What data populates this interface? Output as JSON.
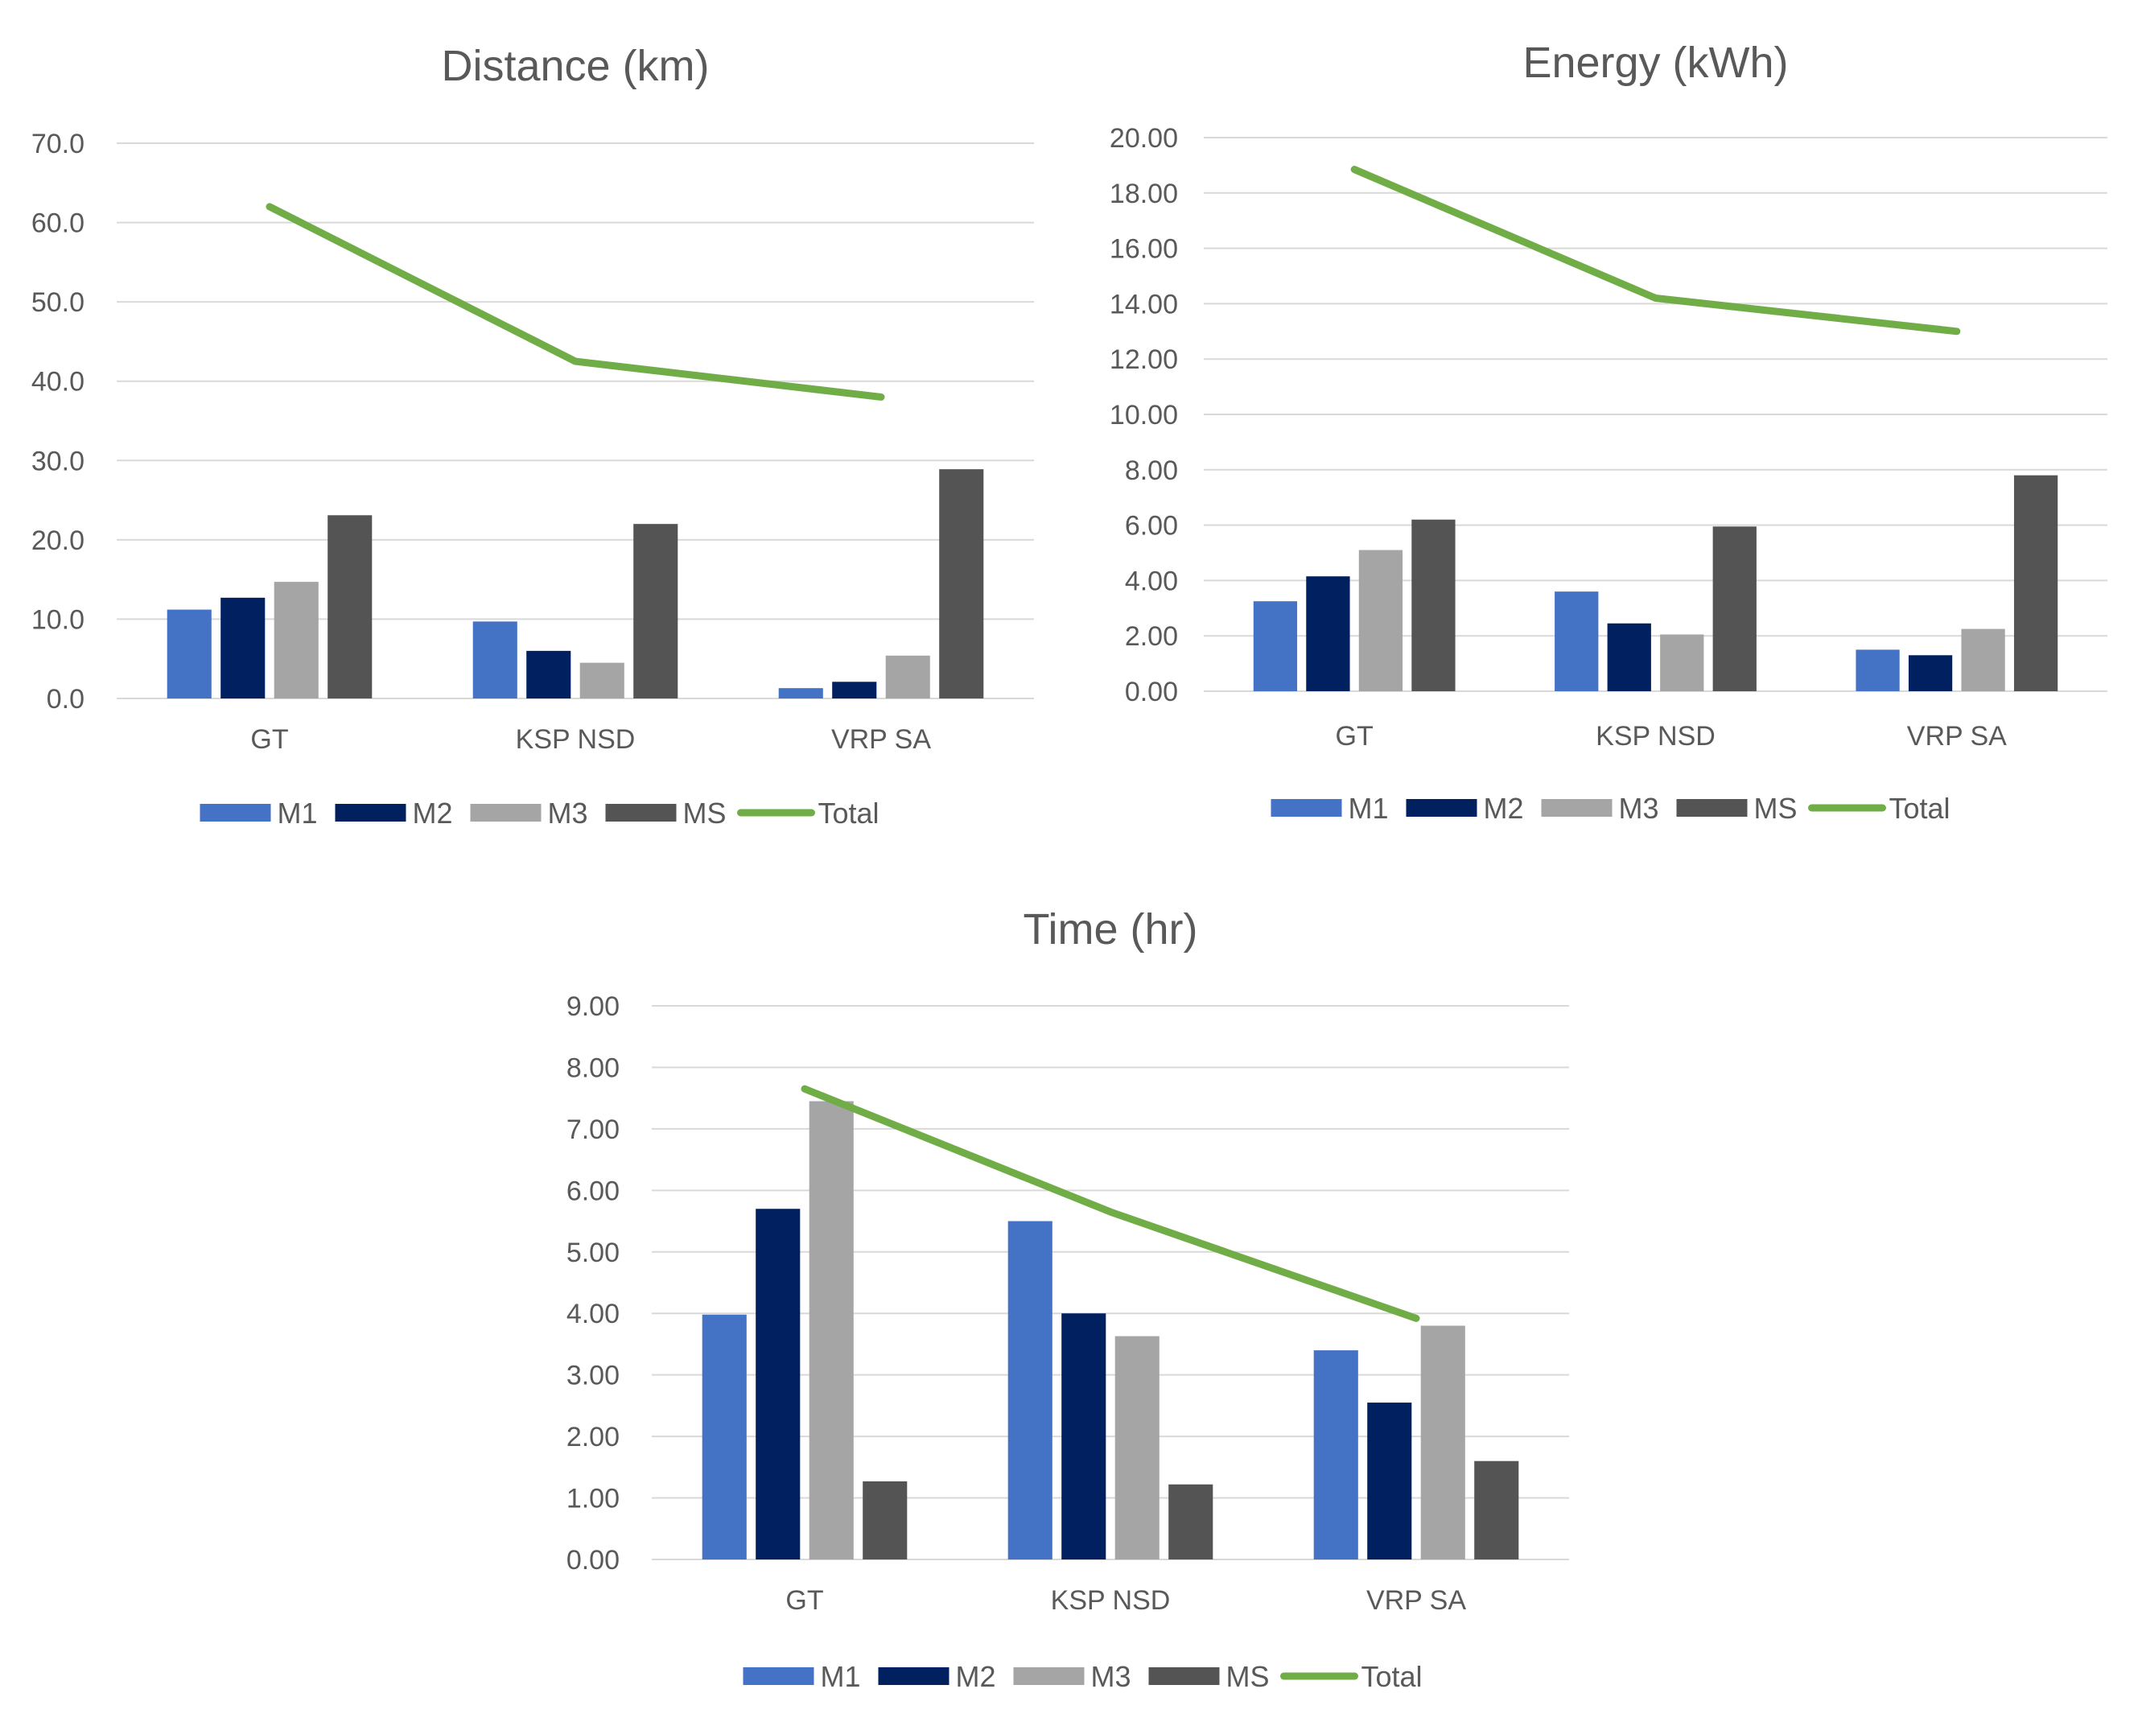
{
  "chart_data": [
    {
      "type": "bar",
      "title": "Distance (km)",
      "categories": [
        "GT",
        "KSP NSD",
        "VRP SA"
      ],
      "yticks": [
        "0.0",
        "10.0",
        "20.0",
        "30.0",
        "40.0",
        "50.0",
        "60.0",
        "70.0"
      ],
      "ylim": [
        0,
        70
      ],
      "grid": true,
      "legend_position": "bottom",
      "series": [
        {
          "name": "M1",
          "kind": "bar",
          "color": "#4472C4",
          "values": [
            11.2,
            9.7,
            1.3
          ]
        },
        {
          "name": "M2",
          "kind": "bar",
          "color": "#002060",
          "values": [
            12.7,
            6.0,
            2.1
          ]
        },
        {
          "name": "M3",
          "kind": "bar",
          "color": "#A5A5A5",
          "values": [
            14.7,
            4.5,
            5.4
          ]
        },
        {
          "name": "MS",
          "kind": "bar",
          "color": "#545454",
          "values": [
            23.1,
            22.0,
            28.9
          ]
        },
        {
          "name": "Total",
          "kind": "line",
          "color": "#70AD47",
          "values": [
            62.0,
            42.5,
            38.0
          ]
        }
      ]
    },
    {
      "type": "bar",
      "title": "Energy (kWh)",
      "categories": [
        "GT",
        "KSP NSD",
        "VRP SA"
      ],
      "yticks": [
        "0.00",
        "2.00",
        "4.00",
        "6.00",
        "8.00",
        "10.00",
        "12.00",
        "14.00",
        "16.00",
        "18.00",
        "20.00"
      ],
      "ylim": [
        0,
        20
      ],
      "grid": true,
      "legend_position": "bottom",
      "series": [
        {
          "name": "M1",
          "kind": "bar",
          "color": "#4472C4",
          "values": [
            3.25,
            3.6,
            1.5
          ]
        },
        {
          "name": "M2",
          "kind": "bar",
          "color": "#002060",
          "values": [
            4.15,
            2.45,
            1.3
          ]
        },
        {
          "name": "M3",
          "kind": "bar",
          "color": "#A5A5A5",
          "values": [
            5.1,
            2.05,
            2.25
          ]
        },
        {
          "name": "MS",
          "kind": "bar",
          "color": "#545454",
          "values": [
            6.2,
            5.95,
            7.8
          ]
        },
        {
          "name": "Total",
          "kind": "line",
          "color": "#70AD47",
          "values": [
            18.85,
            14.2,
            13.0
          ]
        }
      ]
    },
    {
      "type": "bar",
      "title": "Time (hr)",
      "categories": [
        "GT",
        "KSP NSD",
        "VRP SA"
      ],
      "yticks": [
        "0.00",
        "1.00",
        "2.00",
        "3.00",
        "4.00",
        "5.00",
        "6.00",
        "7.00",
        "8.00",
        "9.00"
      ],
      "ylim": [
        0,
        9
      ],
      "grid": true,
      "legend_position": "bottom",
      "series": [
        {
          "name": "M1",
          "kind": "bar",
          "color": "#4472C4",
          "values": [
            3.98,
            5.5,
            3.4
          ]
        },
        {
          "name": "M2",
          "kind": "bar",
          "color": "#002060",
          "values": [
            5.7,
            4.0,
            2.55
          ]
        },
        {
          "name": "M3",
          "kind": "bar",
          "color": "#A5A5A5",
          "values": [
            7.45,
            3.63,
            3.8
          ]
        },
        {
          "name": "MS",
          "kind": "bar",
          "color": "#545454",
          "values": [
            1.27,
            1.22,
            1.6
          ]
        },
        {
          "name": "Total",
          "kind": "line",
          "color": "#70AD47",
          "values": [
            7.65,
            5.65,
            3.92
          ]
        }
      ]
    }
  ]
}
